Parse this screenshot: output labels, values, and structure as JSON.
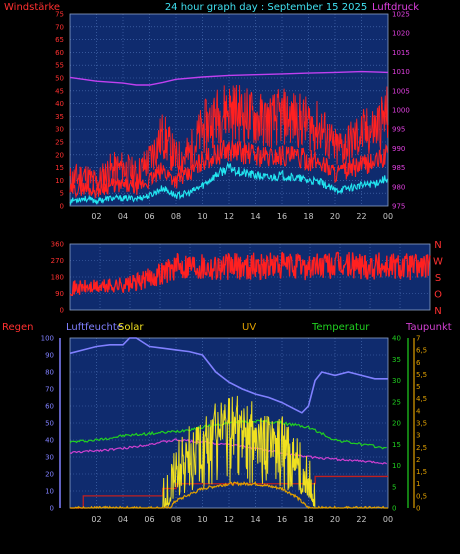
{
  "header": {
    "left_label": "Windstärke",
    "title": "24 hour graph day : September 15 2025",
    "right_label": "Luftdruck"
  },
  "wind_direction_labels": [
    "N",
    "W",
    "S",
    "O",
    "N"
  ],
  "panel3_labels": {
    "rain": "Regen",
    "humidity": "Luftfeuchte",
    "solar": "Solar",
    "uv": "UV",
    "temperature": "Temperatur",
    "dewpoint": "Taupunkt"
  },
  "colors": {
    "background": "#000000",
    "plot_background": "#0f2b6e",
    "grid": "#4f73b8",
    "wind": "#ff2020",
    "gust": "#ff2020",
    "wind_avg": "#22e4ef",
    "pressure": "#c040f0",
    "direction": "#ff2020",
    "humidity": "#8080ff",
    "solar": "#f0e020",
    "uv": "#e0a000",
    "temperature": "#20d020",
    "dewpoint": "#d040d0",
    "rain": "#c02020",
    "title": "#40e0f0",
    "left_axis": "#ff3030",
    "right_axis": "#e040e0"
  },
  "chart_data": [
    {
      "type": "line",
      "name_left_axis": "Windstärke",
      "name_right_axis": "Luftdruck",
      "x_ticks": [
        "02",
        "04",
        "06",
        "08",
        "10",
        "12",
        "14",
        "16",
        "18",
        "20",
        "22",
        "00"
      ],
      "y_left_ticks": [
        "0",
        "5",
        "10",
        "15",
        "20",
        "25",
        "30",
        "35",
        "40",
        "45",
        "50",
        "55",
        "60",
        "65",
        "70",
        "75"
      ],
      "y_left_range": [
        0,
        75
      ],
      "y_right_ticks": [
        "975",
        "980",
        "985",
        "990",
        "995",
        "1000",
        "1005",
        "1010",
        "1015",
        "1020",
        "1025"
      ],
      "y_right_range": [
        975,
        1025
      ],
      "x_range_hours": [
        0,
        24
      ],
      "series": [
        {
          "key": "gust",
          "x": [
            0,
            1,
            2,
            3,
            4,
            5,
            6,
            7,
            8,
            9,
            10,
            11,
            12,
            13,
            14,
            15,
            16,
            17,
            18,
            19,
            20,
            21,
            22,
            23,
            24
          ],
          "values": [
            10,
            12,
            9,
            14,
            15,
            12,
            18,
            28,
            18,
            20,
            30,
            35,
            38,
            36,
            34,
            33,
            35,
            34,
            32,
            30,
            22,
            24,
            28,
            30,
            36
          ]
        },
        {
          "key": "wind",
          "x": [
            0,
            1,
            2,
            3,
            4,
            5,
            6,
            7,
            8,
            9,
            10,
            11,
            12,
            13,
            14,
            15,
            16,
            17,
            18,
            19,
            20,
            21,
            22,
            23,
            24
          ],
          "values": [
            6,
            7,
            6,
            8,
            8,
            7,
            10,
            14,
            10,
            12,
            18,
            20,
            22,
            21,
            20,
            19,
            20,
            19,
            18,
            17,
            13,
            14,
            16,
            17,
            20
          ]
        },
        {
          "key": "wind_avg",
          "x": [
            0,
            1,
            2,
            3,
            4,
            5,
            6,
            7,
            8,
            9,
            10,
            11,
            12,
            13,
            14,
            15,
            16,
            17,
            18,
            19,
            20,
            21,
            22,
            23,
            24
          ],
          "values": [
            2,
            3,
            2,
            3,
            3,
            3,
            4,
            7,
            4,
            5,
            8,
            12,
            15,
            13,
            12,
            11,
            12,
            11,
            10,
            9,
            6,
            7,
            8,
            9,
            11
          ]
        },
        {
          "key": "pressure",
          "axis": "right",
          "x": [
            0,
            2,
            4,
            5,
            6,
            7,
            8,
            10,
            12,
            14,
            16,
            18,
            20,
            22,
            24
          ],
          "values": [
            1008.5,
            1007.5,
            1007,
            1006.5,
            1006.5,
            1007.2,
            1008,
            1008.6,
            1009,
            1009.2,
            1009.4,
            1009.6,
            1009.8,
            1010,
            1009.8
          ]
        }
      ]
    },
    {
      "type": "line",
      "y_ticks": [
        "0",
        "90",
        "180",
        "270",
        "360"
      ],
      "y_range": [
        0,
        360
      ],
      "x_range_hours": [
        0,
        24
      ],
      "series": [
        {
          "key": "direction",
          "x": [
            0,
            2,
            3,
            4,
            5,
            6,
            7,
            8,
            9,
            10,
            12,
            14,
            16,
            18,
            20,
            22,
            24
          ],
          "values": [
            120,
            125,
            135,
            140,
            165,
            200,
            235,
            250,
            240,
            235,
            240,
            240,
            238,
            242,
            245,
            240,
            238
          ]
        }
      ]
    },
    {
      "type": "line",
      "x_ticks": [
        "02",
        "04",
        "06",
        "08",
        "10",
        "12",
        "14",
        "16",
        "18",
        "20",
        "22",
        "00"
      ],
      "x_range_hours": [
        0,
        24
      ],
      "y_left_ticks": [
        "0",
        "10",
        "20",
        "30",
        "40",
        "50",
        "60",
        "70",
        "80",
        "90",
        "100"
      ],
      "y_left_range": [
        0,
        100
      ],
      "y_mid_ticks": [
        "0",
        "5",
        "10",
        "15",
        "20",
        "25",
        "30",
        "35",
        "40"
      ],
      "y_mid_range": [
        0,
        40
      ],
      "y_right_ticks": [
        "0",
        "0,5",
        "1",
        "1,5",
        "2",
        "2,5",
        "3",
        "3,5",
        "4",
        "4,5",
        "5",
        "5,5",
        "6",
        "6,5",
        "7"
      ],
      "y_right_range": [
        0,
        7
      ],
      "series": [
        {
          "key": "humidity",
          "axis": "left",
          "x": [
            0,
            1,
            2,
            3,
            4,
            4.5,
            5,
            6,
            7,
            8,
            9,
            10,
            11,
            12,
            13,
            14,
            15,
            16,
            17,
            17.5,
            18,
            18.5,
            19,
            20,
            21,
            22,
            23,
            24
          ],
          "values": [
            91,
            93,
            95,
            96,
            96,
            100,
            100,
            95,
            94,
            93,
            92,
            90,
            80,
            74,
            70,
            67,
            65,
            62,
            58,
            56,
            60,
            75,
            80,
            78,
            80,
            78,
            76,
            76
          ]
        },
        {
          "key": "temperature",
          "axis": "mid",
          "x": [
            0,
            2,
            4,
            6,
            8,
            10,
            12,
            14,
            16,
            18,
            20,
            22,
            24
          ],
          "values": [
            15.5,
            16,
            17,
            17.5,
            18,
            19,
            20,
            20.5,
            20,
            19,
            16,
            15,
            14
          ]
        },
        {
          "key": "dewpoint",
          "axis": "mid",
          "x": [
            0,
            2,
            4,
            6,
            8,
            10,
            12,
            14,
            16,
            18,
            20,
            22,
            24
          ],
          "values": [
            13,
            13.5,
            14,
            15,
            16,
            15.5,
            15,
            14,
            13,
            12,
            11.5,
            11,
            10.5
          ]
        },
        {
          "key": "solar",
          "axis": "right",
          "x": [
            7,
            7.5,
            8,
            9,
            10,
            11,
            12,
            13,
            14,
            15,
            16,
            17,
            18,
            18.5
          ],
          "values": [
            0,
            0.3,
            1.5,
            2.2,
            2.8,
            3.2,
            3.5,
            3.4,
            3.2,
            3.0,
            2.6,
            2.0,
            1.0,
            0
          ]
        },
        {
          "key": "uv",
          "axis": "right",
          "x": [
            7.5,
            8,
            10,
            12,
            14,
            16,
            17,
            18
          ],
          "values": [
            0,
            0.3,
            0.8,
            1.0,
            1.0,
            0.8,
            0.5,
            0
          ]
        },
        {
          "key": "rain",
          "axis": "right",
          "x": [
            0,
            1,
            5,
            7,
            8,
            18,
            18.5,
            24
          ],
          "values": [
            0,
            0.5,
            0.5,
            0.8,
            1.0,
            1.0,
            1.3,
            1.3
          ]
        }
      ]
    }
  ]
}
